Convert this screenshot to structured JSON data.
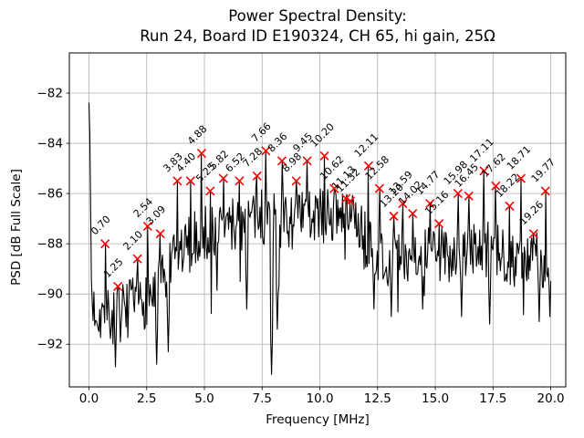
{
  "chart_data": {
    "type": "line",
    "title_line1": "Power Spectral Density:",
    "title_line2": "Run 24, Board ID E190324, CH 65, hi gain, 25Ω",
    "xlabel": "Frequency [MHz]",
    "ylabel": "PSD [dB Full Scale]",
    "xlim": [
      -0.85,
      20.65
    ],
    "ylim": [
      -93.7,
      -80.4
    ],
    "xtick_labels": [
      "0.0",
      "2.5",
      "5.0",
      "7.5",
      "10.0",
      "12.5",
      "15.0",
      "17.5",
      "20.0"
    ],
    "xtick_values": [
      0,
      2.5,
      5,
      7.5,
      10,
      12.5,
      15,
      17.5,
      20
    ],
    "ytick_labels": [
      "−82",
      "−84",
      "−86",
      "−88",
      "−90",
      "−92"
    ],
    "ytick_values": [
      -82,
      -84,
      -86,
      -88,
      -90,
      -92
    ],
    "grid": true,
    "legend": "none",
    "line_color": "#000000",
    "marker_color": "#ff0000",
    "marker_style": "x",
    "grid_color": "#b0b0b0",
    "dc_spike": {
      "freq_mhz": 0.0,
      "psd_db": -82.4
    },
    "peaks": [
      {
        "freq_mhz": 0.7,
        "psd_db": -88.0,
        "label": "0.70"
      },
      {
        "freq_mhz": 1.25,
        "psd_db": -89.7,
        "label": "1.25"
      },
      {
        "freq_mhz": 2.1,
        "psd_db": -88.6,
        "label": "2.10"
      },
      {
        "freq_mhz": 2.54,
        "psd_db": -87.3,
        "label": "2.54"
      },
      {
        "freq_mhz": 3.09,
        "psd_db": -87.6,
        "label": "3.09"
      },
      {
        "freq_mhz": 3.83,
        "psd_db": -85.5,
        "label": "3.83"
      },
      {
        "freq_mhz": 4.4,
        "psd_db": -85.5,
        "label": "4.40"
      },
      {
        "freq_mhz": 4.88,
        "psd_db": -84.4,
        "label": "4.88"
      },
      {
        "freq_mhz": 5.25,
        "psd_db": -85.9,
        "label": "5.25"
      },
      {
        "freq_mhz": 5.82,
        "psd_db": -85.4,
        "label": "5.82"
      },
      {
        "freq_mhz": 6.52,
        "psd_db": -85.5,
        "label": "6.52"
      },
      {
        "freq_mhz": 7.28,
        "psd_db": -85.3,
        "label": "7.28"
      },
      {
        "freq_mhz": 7.66,
        "psd_db": -84.3,
        "label": "7.66"
      },
      {
        "freq_mhz": 8.36,
        "psd_db": -84.7,
        "label": "8.36"
      },
      {
        "freq_mhz": 8.98,
        "psd_db": -85.5,
        "label": "8.98"
      },
      {
        "freq_mhz": 9.45,
        "psd_db": -84.7,
        "label": "9.45"
      },
      {
        "freq_mhz": 10.2,
        "psd_db": -84.5,
        "label": "10.20"
      },
      {
        "freq_mhz": 10.62,
        "psd_db": -85.8,
        "label": "10.62"
      },
      {
        "freq_mhz": 11.13,
        "psd_db": -86.2,
        "label": "11.13"
      },
      {
        "freq_mhz": 11.32,
        "psd_db": -86.3,
        "label": "11.32"
      },
      {
        "freq_mhz": 12.11,
        "psd_db": -84.9,
        "label": "12.11"
      },
      {
        "freq_mhz": 12.58,
        "psd_db": -85.8,
        "label": "12.58"
      },
      {
        "freq_mhz": 13.2,
        "psd_db": -86.9,
        "label": "13.20"
      },
      {
        "freq_mhz": 13.59,
        "psd_db": -86.4,
        "label": "13.59"
      },
      {
        "freq_mhz": 14.02,
        "psd_db": -86.8,
        "label": "14.02"
      },
      {
        "freq_mhz": 14.77,
        "psd_db": -86.4,
        "label": "14.77"
      },
      {
        "freq_mhz": 15.16,
        "psd_db": -87.2,
        "label": "15.16"
      },
      {
        "freq_mhz": 15.98,
        "psd_db": -86.0,
        "label": "15.98"
      },
      {
        "freq_mhz": 16.45,
        "psd_db": -86.1,
        "label": "16.45"
      },
      {
        "freq_mhz": 17.11,
        "psd_db": -85.1,
        "label": "17.11"
      },
      {
        "freq_mhz": 17.62,
        "psd_db": -85.7,
        "label": "17.62"
      },
      {
        "freq_mhz": 18.22,
        "psd_db": -86.5,
        "label": "18.22"
      },
      {
        "freq_mhz": 18.71,
        "psd_db": -85.4,
        "label": "18.71"
      },
      {
        "freq_mhz": 19.26,
        "psd_db": -87.6,
        "label": "19.26"
      },
      {
        "freq_mhz": 19.77,
        "psd_db": -85.9,
        "label": "19.77"
      }
    ],
    "noise_floor": {
      "x_mhz": [
        0,
        0.5,
        1.0,
        1.8,
        2.6,
        3.2,
        3.8,
        4.5,
        5.5,
        6.5,
        7.5,
        8.5,
        9.5,
        10.5,
        11.5,
        12.2,
        13.0,
        14.0,
        15.0,
        16.0,
        17.0,
        18.0,
        19.0,
        20.0
      ],
      "psd_db": [
        -90.4,
        -90.8,
        -91.0,
        -90.6,
        -90.2,
        -89.6,
        -88.6,
        -87.9,
        -87.5,
        -87.2,
        -86.9,
        -87.2,
        -87.0,
        -86.9,
        -87.3,
        -88.1,
        -88.7,
        -88.4,
        -88.6,
        -88.3,
        -88.2,
        -88.5,
        -88.8,
        -88.6
      ]
    },
    "dips": [
      {
        "freq_mhz": 1.15,
        "psd_db": -92.9
      },
      {
        "freq_mhz": 2.95,
        "psd_db": -92.8
      },
      {
        "freq_mhz": 3.45,
        "psd_db": -92.3
      },
      {
        "freq_mhz": 6.85,
        "psd_db": -90.6
      },
      {
        "freq_mhz": 7.9,
        "psd_db": -93.2
      },
      {
        "freq_mhz": 8.15,
        "psd_db": -91.4
      },
      {
        "freq_mhz": 12.35,
        "psd_db": -90.6
      },
      {
        "freq_mhz": 13.1,
        "psd_db": -90.9
      },
      {
        "freq_mhz": 14.45,
        "psd_db": -90.6
      },
      {
        "freq_mhz": 16.15,
        "psd_db": -90.9
      },
      {
        "freq_mhz": 17.35,
        "psd_db": -91.2
      },
      {
        "freq_mhz": 19.5,
        "psd_db": -91.1
      },
      {
        "freq_mhz": 19.95,
        "psd_db": -90.9
      }
    ]
  }
}
